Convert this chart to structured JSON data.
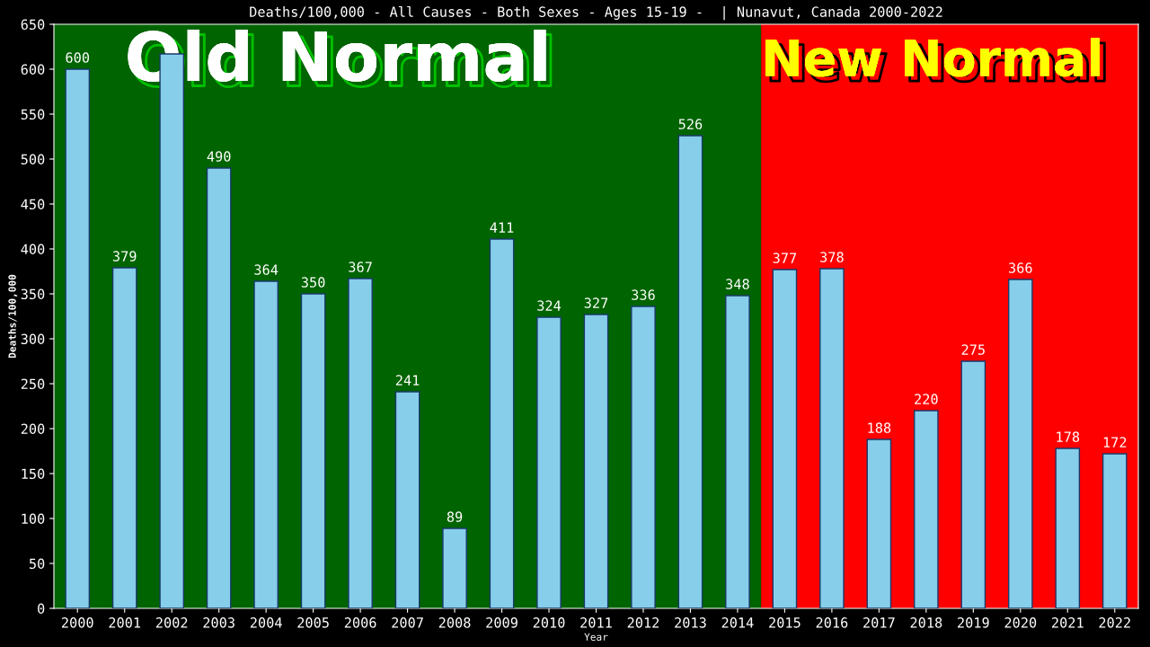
{
  "chart_data": {
    "type": "bar",
    "title": "Deaths/100,000 - All Causes - Both Sexes - Ages 15-19 -  | Nunavut, Canada 2000-2022",
    "xlabel": "Year",
    "ylabel": "Deaths/100,000",
    "categories": [
      "2000",
      "2001",
      "2002",
      "2003",
      "2004",
      "2005",
      "2006",
      "2007",
      "2008",
      "2009",
      "2010",
      "2011",
      "2012",
      "2013",
      "2014",
      "2015",
      "2016",
      "2017",
      "2018",
      "2019",
      "2020",
      "2021",
      "2022"
    ],
    "values": [
      600,
      379,
      617,
      490,
      364,
      350,
      367,
      241,
      89,
      411,
      324,
      327,
      336,
      526,
      348,
      377,
      378,
      188,
      220,
      275,
      366,
      178,
      172
    ],
    "value_labels": [
      "600",
      "379",
      null,
      "490",
      "364",
      "350",
      "367",
      "241",
      "89",
      "411",
      "324",
      "327",
      "336",
      "526",
      "348",
      "377",
      "378",
      "188",
      "220",
      "275",
      "366",
      "178",
      "172"
    ],
    "color": "#87ceeb",
    "ylim": [
      0,
      650
    ],
    "yticks": [
      0,
      50,
      100,
      150,
      200,
      250,
      300,
      350,
      400,
      450,
      500,
      550,
      600,
      650
    ],
    "grid": false,
    "legend": false,
    "bands": [
      {
        "axis": "x",
        "from": "2000",
        "to": "2014",
        "label": "Old Normal",
        "color": "#006400"
      },
      {
        "axis": "x",
        "from": "2015",
        "to": "2022",
        "label": "New Normal",
        "color": "#ff0000"
      }
    ]
  }
}
